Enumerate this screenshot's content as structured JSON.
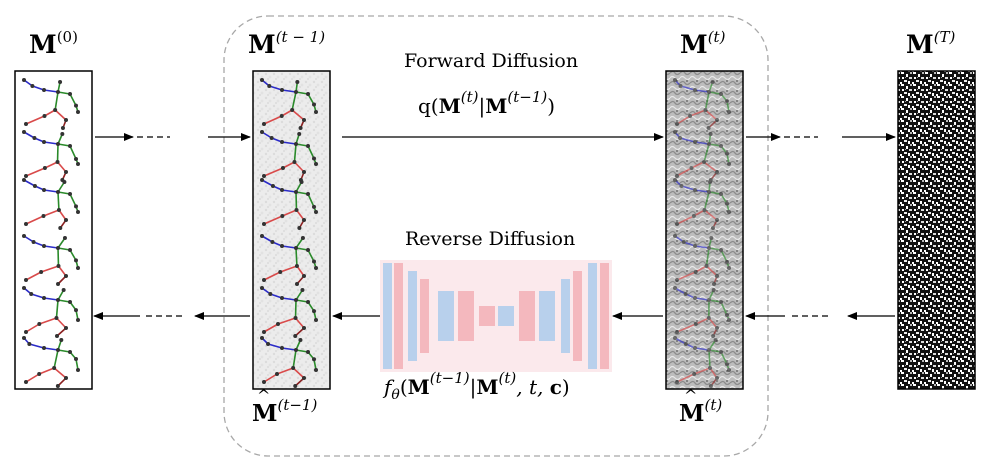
{
  "labels": {
    "m0_base": "M",
    "m0_sup": "(0)",
    "mt1_base": "M",
    "mt1_sup": "(t − 1)",
    "mt_base": "M",
    "mt_sup": "(t)",
    "mT_base": "M",
    "mT_sup": "(T)",
    "mhat_t1_base": "M",
    "mhat_t1_sup": "(t−1)",
    "mhat_t_base": "M",
    "mhat_t_sup": "(t)"
  },
  "forward": {
    "title": "Forward Diffusion",
    "eq_prefix": "q(",
    "eq_m1": "M",
    "eq_sup1": "(t)",
    "eq_mid": "|",
    "eq_m2": "M",
    "eq_sup2": "(t−1)",
    "eq_suffix": ")"
  },
  "reverse": {
    "title": "Reverse Diffusion",
    "eq_f": "f",
    "eq_theta": "θ",
    "eq_open": "(",
    "eq_m1": "M",
    "eq_sup1": "(t−1)",
    "eq_mid": "|",
    "eq_m2": "M",
    "eq_sup2": "(t)",
    "eq_t": ", t, ",
    "eq_c": "c",
    "eq_close": ")"
  },
  "colors": {
    "skeleton_left": "#d94a4a",
    "skeleton_right": "#2b2bc8",
    "skeleton_spine": "#2a8a2a",
    "unet_blue": "#b8d0ec",
    "unet_red": "#f4b8be",
    "unet_bg": "#fbe9ec",
    "dashed_box": "#a8a8a8"
  }
}
